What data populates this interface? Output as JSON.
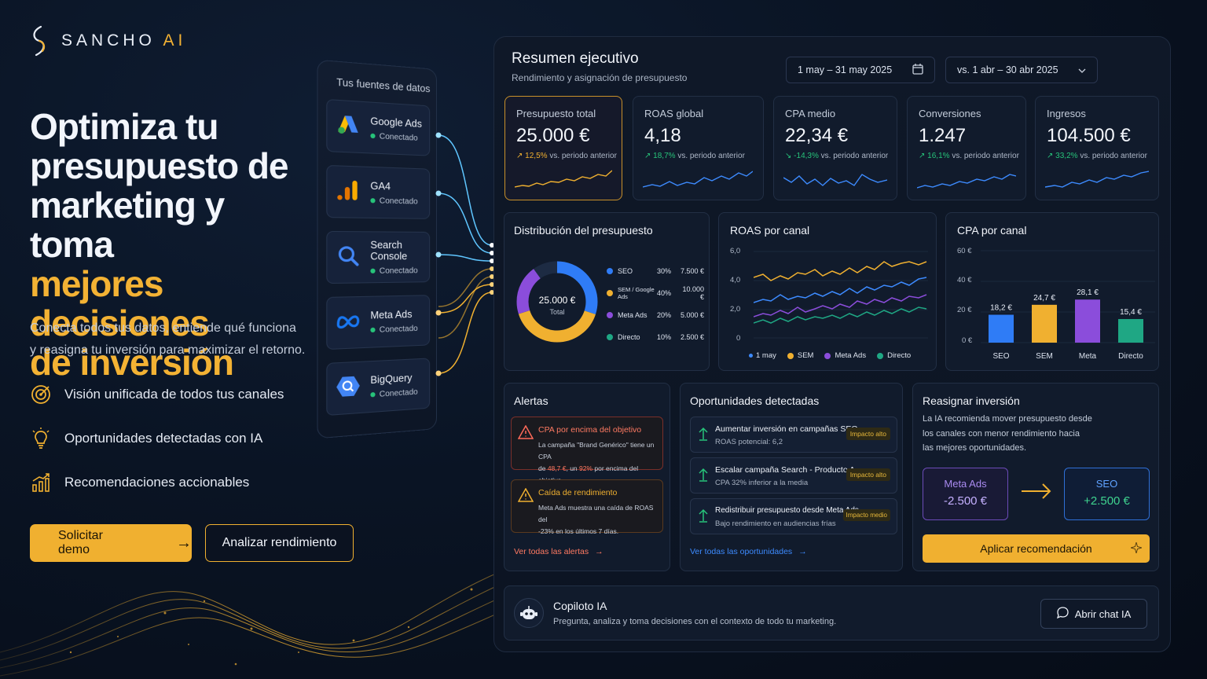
{
  "brand": {
    "name": "SANCHO",
    "suffix": "AI"
  },
  "hero": {
    "line1": "Optimiza tu",
    "line2": "presupuesto de",
    "line3": "marketing y toma",
    "line4": "mejores decisiones",
    "line5": "de inversión",
    "subtitle1": "Conecta todos tus datos, entiende qué funciona",
    "subtitle2": "y reasigna tu inversión para maximizar el retorno."
  },
  "features": [
    {
      "label": "Visión unificada de todos tus canales",
      "icon": "target-icon"
    },
    {
      "label": "Oportunidades detectadas con IA",
      "icon": "lightbulb-icon"
    },
    {
      "label": "Recomendaciones accionables",
      "icon": "bar-growth-icon"
    }
  ],
  "cta": {
    "primary": "Solicitar demo",
    "secondary": "Analizar rendimiento"
  },
  "sources": {
    "title": "Tus fuentes de datos",
    "items": [
      {
        "name": "Google Ads",
        "status": "Conectado",
        "icon": "google-ads-icon"
      },
      {
        "name": "GA4",
        "status": "Conectado",
        "icon": "ga4-icon"
      },
      {
        "name": "Search Console",
        "status": "Conectado",
        "icon": "search-console-icon"
      },
      {
        "name": "Meta Ads",
        "status": "Conectado",
        "icon": "meta-icon"
      },
      {
        "name": "BigQuery",
        "status": "Conectado",
        "icon": "bigquery-icon"
      }
    ]
  },
  "dashboard": {
    "title": "Resumen ejecutivo",
    "subtitle": "Rendimiento y asignación de presupuesto",
    "date_range": "1 may – 31 may 2025",
    "compare_range": "vs. 1 abr – 30 abr 2025",
    "kpis": [
      {
        "label": "Presupuesto total",
        "value": "25.000 €",
        "delta": "12,5%",
        "delta_suffix": "vs. periodo anterior",
        "arrow": "↗",
        "trend_color": "#f0b030"
      },
      {
        "label": "ROAS global",
        "value": "4,18",
        "delta": "18,7%",
        "delta_suffix": "vs. periodo anterior",
        "arrow": "↗",
        "trend_color": "#3d8bff"
      },
      {
        "label": "CPA medio",
        "value": "22,34 €",
        "delta": "-14,3%",
        "delta_suffix": "vs. periodo anterior",
        "arrow": "↘",
        "trend_color": "#3d8bff"
      },
      {
        "label": "Conversiones",
        "value": "1.247",
        "delta": "16,1%",
        "delta_suffix": "vs. periodo anterior",
        "arrow": "↗",
        "trend_color": "#3d8bff"
      },
      {
        "label": "Ingresos",
        "value": "104.500 €",
        "delta": "33,2%",
        "delta_suffix": "vs. periodo anterior",
        "arrow": "↗",
        "trend_color": "#3d8bff"
      }
    ],
    "budget": {
      "title": "Distribución del presupuesto",
      "center_value": "25.000 €",
      "center_label": "Total",
      "rows": [
        {
          "name": "SEO",
          "pct": "30%",
          "amount": "7.500 €",
          "color": "#2f7cf6"
        },
        {
          "name": "SEM / Google Ads",
          "pct": "40%",
          "amount": "10.000 €",
          "color": "#f0b030"
        },
        {
          "name": "Meta Ads",
          "pct": "20%",
          "amount": "5.000 €",
          "color": "#8b4ddb"
        },
        {
          "name": "Directo",
          "pct": "10%",
          "amount": "2.500 €",
          "color": "#1fa784"
        }
      ]
    },
    "roas": {
      "title": "ROAS por canal",
      "yticks": [
        "6,0",
        "4,0",
        "2,0",
        "0"
      ],
      "xlabel": "1 may",
      "legend": [
        "SEM",
        "Meta Ads",
        "Directo"
      ]
    },
    "cpa": {
      "title": "CPA por canal",
      "yticks": [
        "60 €",
        "40 €",
        "20 €",
        "0 €"
      ],
      "bars": [
        {
          "cat": "SEO",
          "label": "18,2 €",
          "value": 18.2,
          "color": "#2f7cf6"
        },
        {
          "cat": "SEM",
          "label": "24,7 €",
          "value": 24.7,
          "color": "#f0b030"
        },
        {
          "cat": "Meta",
          "label": "28,1 €",
          "value": 28.1,
          "color": "#8b4ddb"
        },
        {
          "cat": "Directo",
          "label": "15,4 €",
          "value": 15.4,
          "color": "#1fa784"
        }
      ]
    },
    "alerts": {
      "title": "Alertas",
      "items": [
        {
          "title": "CPA por encima del objetivo",
          "body1": "La campaña \"Brand Genérico\" tiene un CPA",
          "body2_pre": "de ",
          "v1": "48,7 €",
          "body2_mid": ", un ",
          "v2": "92%",
          "body2_post": " por encima del objetivo."
        },
        {
          "title": "Caída de rendimiento",
          "body1": "Meta Ads muestra una caída de ROAS del",
          "body2": "-23% en los últimos 7 días."
        }
      ],
      "link": "Ver todas las alertas"
    },
    "opportunities": {
      "title": "Oportunidades detectadas",
      "items": [
        {
          "title": "Aumentar inversión en campañas SEO",
          "sub": "ROAS potencial: 6,2",
          "badge": "Impacto alto"
        },
        {
          "title": "Escalar campaña Search - Producto A",
          "sub": "CPA 32% inferior a la media",
          "badge": "Impacto alto"
        },
        {
          "title": "Redistribuir presupuesto desde Meta Ads",
          "sub": "Bajo rendimiento en audiencias frías",
          "badge": "Impacto medio"
        }
      ],
      "link": "Ver todas las oportunidades"
    },
    "reallocate": {
      "title": "Reasignar inversión",
      "desc1": "La IA recomienda mover presupuesto desde",
      "desc2": "los canales con menor rendimiento hacia",
      "desc3": "las mejores oportunidades.",
      "from_name": "Meta Ads",
      "from_value": "-2.500 €",
      "to_name": "SEO",
      "to_value": "+2.500 €",
      "button": "Aplicar recomendación"
    },
    "copilot": {
      "title": "Copiloto IA",
      "subtitle": "Pregunta, analiza y toma decisiones con el contexto de todo tu marketing.",
      "button": "Abrir chat IA"
    }
  }
}
